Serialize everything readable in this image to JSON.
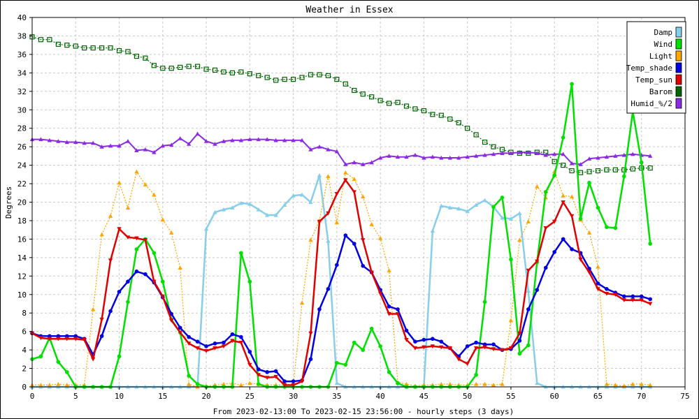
{
  "chart_data": {
    "type": "line",
    "title": "Weather in Essex",
    "xlabel": "From 2023-02-13:00 To 2023-02-15 23:56:00 - hourly steps (3 days)",
    "ylabel": "Degrees",
    "xlim": [
      0,
      75
    ],
    "ylim": [
      0,
      40
    ],
    "x_ticks": [
      0,
      5,
      10,
      15,
      20,
      25,
      30,
      35,
      40,
      45,
      50,
      55,
      60,
      65,
      70,
      75
    ],
    "y_ticks": [
      0,
      2,
      4,
      6,
      8,
      10,
      12,
      14,
      16,
      18,
      20,
      22,
      24,
      26,
      28,
      30,
      32,
      34,
      36,
      38,
      40
    ],
    "grid": true,
    "legend_position": "top-right",
    "x": [
      0,
      1,
      2,
      3,
      4,
      5,
      6,
      7,
      8,
      9,
      10,
      11,
      12,
      13,
      14,
      15,
      16,
      17,
      18,
      19,
      20,
      21,
      22,
      23,
      24,
      25,
      26,
      27,
      28,
      29,
      30,
      31,
      32,
      33,
      34,
      35,
      36,
      37,
      38,
      39,
      40,
      41,
      42,
      43,
      44,
      45,
      46,
      47,
      48,
      49,
      50,
      51,
      52,
      53,
      54,
      55,
      56,
      57,
      58,
      59,
      60,
      61,
      62,
      63,
      64,
      65,
      66,
      67,
      68,
      69,
      70,
      71
    ],
    "series": [
      {
        "name": "Damp",
        "color": "#87ceeb",
        "marker": "triangle-up",
        "values": [
          0,
          0,
          0,
          0,
          0,
          0,
          0,
          0,
          0,
          0,
          0,
          0,
          0,
          0,
          0,
          0,
          0,
          0,
          0,
          0,
          17.1,
          18.9,
          19.2,
          19.4,
          19.9,
          19.8,
          19.2,
          18.6,
          18.6,
          19.7,
          20.7,
          20.8,
          20.0,
          22.9,
          15.8,
          0.4,
          0,
          0,
          0,
          0,
          0,
          0,
          0,
          0,
          0,
          0,
          16.9,
          19.6,
          19.4,
          19.3,
          19.0,
          19.7,
          20.2,
          19.5,
          18.3,
          18.2,
          18.8,
          10.4,
          0.4,
          0,
          0,
          0,
          0,
          0,
          0,
          0,
          0,
          0,
          0,
          0,
          0,
          0
        ]
      },
      {
        "name": "Wind",
        "color": "#00e000",
        "marker": "circle",
        "values": [
          3.0,
          3.3,
          5.3,
          2.7,
          1.6,
          0,
          0,
          0,
          0,
          0,
          3.3,
          9.2,
          14.9,
          16.0,
          14.5,
          11.4,
          7.3,
          5.9,
          1.2,
          0.3,
          0,
          0,
          0,
          0,
          14.5,
          11.4,
          0.3,
          0,
          0,
          0,
          0,
          0,
          0,
          0,
          0,
          2.6,
          2.4,
          4.8,
          4.0,
          6.3,
          4.4,
          1.6,
          0.4,
          0,
          0,
          0,
          0,
          0,
          0,
          0,
          0,
          1.3,
          9.2,
          19.5,
          20.5,
          13.8,
          3.6,
          4.5,
          13.5,
          21.1,
          22.9,
          27.0,
          32.8,
          18.2,
          22.1,
          19.4,
          17.3,
          17.2,
          22.8,
          29.8,
          24.3,
          15.5
        ]
      },
      {
        "name": "Light",
        "color": "#ffa500",
        "marker": "triangle-up",
        "values": [
          0.2,
          0.2,
          0.2,
          0.3,
          0.2,
          0.2,
          0.2,
          8.4,
          16.5,
          18.5,
          22.1,
          19.4,
          23.3,
          21.9,
          20.8,
          18.1,
          16.7,
          12.9,
          0.3,
          0,
          0.1,
          0.2,
          0.3,
          0.4,
          0.2,
          0.4,
          0.3,
          0.2,
          0.2,
          0.2,
          0.2,
          9.1,
          15.9,
          18.0,
          22.8,
          17.8,
          23.2,
          22.5,
          20.6,
          17.6,
          16.1,
          12.6,
          0.5,
          0.3,
          0.1,
          0.2,
          0.2,
          0.3,
          0.3,
          0.2,
          0.2,
          0.3,
          0.3,
          0.2,
          0.3,
          7.2,
          15.9,
          17.9,
          21.7,
          20.5,
          23.3,
          20.7,
          20.6,
          18.1,
          16.7,
          13.0,
          0.3,
          0.2,
          0.1,
          0.3,
          0.3,
          0.2
        ]
      },
      {
        "name": "Temp_shade",
        "color": "#0000e0",
        "marker": "circle",
        "values": [
          5.8,
          5.5,
          5.5,
          5.5,
          5.5,
          5.5,
          5.2,
          3.5,
          5.5,
          8.2,
          10.3,
          11.4,
          12.5,
          12.2,
          11.3,
          9.7,
          7.9,
          6.4,
          5.4,
          4.9,
          4.4,
          4.7,
          4.8,
          5.7,
          5.4,
          3.8,
          1.9,
          1.6,
          1.7,
          0.6,
          0.6,
          0.7,
          3.0,
          8.4,
          10.6,
          13.2,
          16.4,
          15.5,
          13.1,
          12.4,
          10.5,
          8.7,
          8.4,
          6.1,
          4.9,
          5.1,
          5.2,
          4.9,
          4.2,
          3.3,
          4.4,
          4.8,
          4.6,
          4.6,
          4.0,
          4.1,
          5.0,
          8.4,
          10.5,
          12.9,
          14.6,
          16.0,
          14.9,
          14.5,
          12.8,
          11.2,
          10.6,
          10.2,
          9.8,
          9.8,
          9.8,
          9.5
        ]
      },
      {
        "name": "Temp_sun",
        "color": "#e00000",
        "marker": "triangle-down",
        "values": [
          5.8,
          5.3,
          5.2,
          5.2,
          5.2,
          5.2,
          5.1,
          3.0,
          7.3,
          13.7,
          17.1,
          16.2,
          16.1,
          15.9,
          11.4,
          9.8,
          7.2,
          5.9,
          4.7,
          4.2,
          3.9,
          4.2,
          4.4,
          5.0,
          4.8,
          2.4,
          1.3,
          1.0,
          1.1,
          0.2,
          0.2,
          0.6,
          5.8,
          17.9,
          18.8,
          20.9,
          22.4,
          21.1,
          15.9,
          12.4,
          10.1,
          7.9,
          7.9,
          5.1,
          4.2,
          4.3,
          4.4,
          4.3,
          4.2,
          3.0,
          2.5,
          4.2,
          4.3,
          4.1,
          4.0,
          4.2,
          5.8,
          12.6,
          13.6,
          17.2,
          17.9,
          20.0,
          18.5,
          13.8,
          12.4,
          10.6,
          10.1,
          10.0,
          9.4,
          9.4,
          9.4,
          9.0
        ]
      },
      {
        "name": "Barom",
        "color": "#006400",
        "marker": "square",
        "values": [
          37.9,
          37.6,
          37.6,
          37.1,
          37.0,
          36.9,
          36.7,
          36.7,
          36.7,
          36.7,
          36.4,
          36.3,
          35.8,
          35.6,
          34.8,
          34.5,
          34.5,
          34.6,
          34.7,
          34.7,
          34.4,
          34.3,
          34.1,
          34.0,
          34.1,
          33.9,
          33.7,
          33.5,
          33.2,
          33.3,
          33.3,
          33.5,
          33.8,
          33.8,
          33.7,
          33.3,
          32.8,
          32.1,
          31.7,
          31.4,
          31.0,
          30.7,
          30.8,
          30.4,
          30.1,
          29.9,
          29.5,
          29.4,
          29.0,
          28.6,
          28.0,
          27.3,
          26.5,
          26.0,
          25.7,
          25.4,
          25.3,
          25.3,
          25.4,
          25.4,
          24.4,
          24.0,
          23.4,
          23.2,
          23.3,
          23.4,
          23.5,
          23.5,
          23.5,
          23.6,
          23.7,
          23.7
        ]
      },
      {
        "name": "Humid_%/2",
        "color": "#8a2be2",
        "marker": "triangle-up",
        "values": [
          26.8,
          26.8,
          26.7,
          26.6,
          26.5,
          26.5,
          26.4,
          26.4,
          26.0,
          26.1,
          26.1,
          26.6,
          25.6,
          25.7,
          25.4,
          26.1,
          26.2,
          26.9,
          26.3,
          27.4,
          26.6,
          26.3,
          26.6,
          26.7,
          26.7,
          26.8,
          26.8,
          26.8,
          26.7,
          26.7,
          26.7,
          26.7,
          25.7,
          26.0,
          25.7,
          25.5,
          24.1,
          24.3,
          24.1,
          24.3,
          24.8,
          25.0,
          24.9,
          24.9,
          25.1,
          24.8,
          24.9,
          24.8,
          24.8,
          24.8,
          24.9,
          25.0,
          25.1,
          25.2,
          25.3,
          25.3,
          25.4,
          25.4,
          25.3,
          25.1,
          25.2,
          25.2,
          24.2,
          24.1,
          24.7,
          24.8,
          24.9,
          25.0,
          25.1,
          25.2,
          25.1,
          25.0
        ]
      }
    ]
  }
}
